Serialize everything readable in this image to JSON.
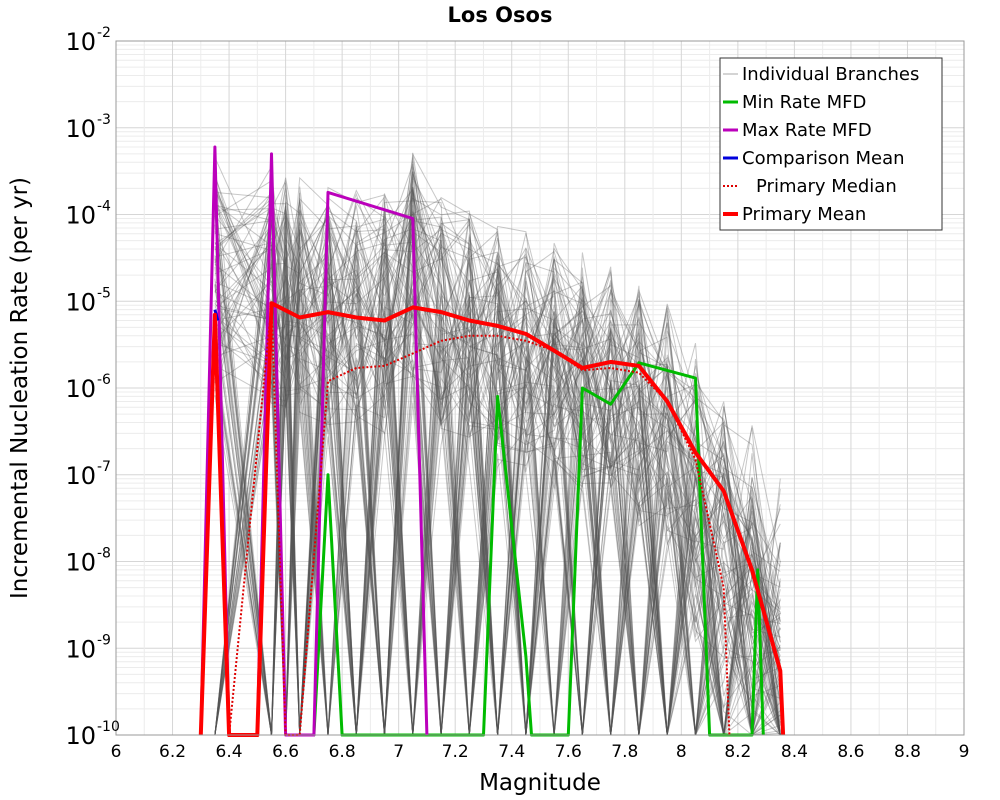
{
  "chart_data": {
    "type": "line",
    "title": "Los Osos",
    "xlabel": "Magnitude",
    "ylabel": "Incremental Nucleation Rate (per yr)",
    "xlim": [
      6,
      9
    ],
    "ylim": [
      1e-10,
      0.01
    ],
    "yscale": "log",
    "grid": true,
    "legend_position": "top-right",
    "x_ticks": [
      "6",
      "6.2",
      "6.4",
      "6.6",
      "6.8",
      "7",
      "7.2",
      "7.4",
      "7.6",
      "7.8",
      "8",
      "8.2",
      "8.4",
      "8.6",
      "8.8",
      "9"
    ],
    "y_ticks": [
      {
        "base": "10",
        "exp": "-10"
      },
      {
        "base": "10",
        "exp": "-9"
      },
      {
        "base": "10",
        "exp": "-8"
      },
      {
        "base": "10",
        "exp": "-7"
      },
      {
        "base": "10",
        "exp": "-6"
      },
      {
        "base": "10",
        "exp": "-5"
      },
      {
        "base": "10",
        "exp": "-4"
      },
      {
        "base": "10",
        "exp": "-3"
      },
      {
        "base": "10",
        "exp": "-2"
      }
    ],
    "series": [
      {
        "name": "Individual Branches",
        "color": "#555555",
        "style": "thin-gray-ensemble",
        "envelope_top": [
          [
            6.35,
            0.00055
          ],
          [
            6.55,
            0.00048
          ],
          [
            6.6,
            0.00035
          ],
          [
            6.65,
            0.00035
          ],
          [
            6.75,
            0.00026
          ],
          [
            6.85,
            0.00024
          ],
          [
            6.95,
            0.00023
          ],
          [
            7.05,
            0.0006
          ],
          [
            7.15,
            0.00016
          ],
          [
            7.25,
            0.00012
          ],
          [
            7.35,
            9e-05
          ],
          [
            7.45,
            7e-05
          ],
          [
            7.55,
            5.5e-05
          ],
          [
            7.65,
            3.8e-05
          ],
          [
            7.75,
            3e-05
          ],
          [
            7.85,
            2.2e-05
          ],
          [
            7.95,
            1.3e-05
          ],
          [
            8.05,
            1e-05
          ],
          [
            8.15,
            4e-06
          ],
          [
            8.2,
            2.5e-06
          ],
          [
            8.25,
            1e-06
          ],
          [
            8.35,
            2e-07
          ]
        ]
      },
      {
        "name": "Min Rate MFD",
        "color": "#00bb00",
        "points": [
          [
            6.65,
            1e-10
          ],
          [
            6.7,
            1e-10
          ],
          [
            6.75,
            1e-07
          ],
          [
            6.8,
            1e-10
          ],
          [
            7.3,
            1e-10
          ],
          [
            7.35,
            8e-07
          ],
          [
            7.45,
            8e-10
          ],
          [
            7.47,
            1e-10
          ],
          [
            7.6,
            1e-10
          ],
          [
            7.65,
            1e-06
          ],
          [
            7.75,
            6.5e-07
          ],
          [
            7.85,
            1.95e-06
          ],
          [
            8.05,
            1.3e-06
          ],
          [
            8.1,
            1e-10
          ],
          [
            8.25,
            1e-10
          ],
          [
            8.27,
            8e-09
          ],
          [
            8.29,
            1e-10
          ]
        ]
      },
      {
        "name": "Max Rate MFD",
        "color": "#bb00bb",
        "points": [
          [
            6.3,
            1e-10
          ],
          [
            6.35,
            0.0006
          ],
          [
            6.4,
            1e-10
          ],
          [
            6.5,
            1e-10
          ],
          [
            6.55,
            0.0005
          ],
          [
            6.6,
            1e-10
          ],
          [
            6.7,
            1e-10
          ],
          [
            6.75,
            0.00018
          ],
          [
            7.05,
            9e-05
          ],
          [
            7.1,
            1e-10
          ]
        ]
      },
      {
        "name": "Comparison Mean",
        "color": "#0000dd",
        "points": [
          [
            6.35,
            8e-06
          ],
          [
            6.36,
            6e-06
          ]
        ]
      },
      {
        "name": "Primary Median",
        "color": "#dd0000",
        "style": "dotted",
        "points": [
          [
            6.3,
            1e-10
          ],
          [
            6.35,
            5e-06
          ],
          [
            6.4,
            1e-10
          ],
          [
            6.55,
            9e-06
          ],
          [
            6.6,
            1e-10
          ],
          [
            6.65,
            1e-10
          ],
          [
            6.75,
            1.2e-06
          ],
          [
            6.85,
            1.7e-06
          ],
          [
            6.95,
            1.8e-06
          ],
          [
            7.05,
            2.5e-06
          ],
          [
            7.15,
            3.5e-06
          ],
          [
            7.25,
            4e-06
          ],
          [
            7.35,
            4e-06
          ],
          [
            7.45,
            3.5e-06
          ],
          [
            7.55,
            2.7e-06
          ],
          [
            7.65,
            1.6e-06
          ],
          [
            7.75,
            1.7e-06
          ],
          [
            7.85,
            1.5e-06
          ],
          [
            7.95,
            7e-07
          ],
          [
            8.05,
            1.5e-07
          ],
          [
            8.15,
            5e-09
          ],
          [
            8.17,
            1e-10
          ]
        ]
      },
      {
        "name": "Primary Mean",
        "color": "#ff0000",
        "points": [
          [
            6.3,
            1e-10
          ],
          [
            6.35,
            7e-06
          ],
          [
            6.4,
            1e-10
          ],
          [
            6.5,
            1e-10
          ],
          [
            6.55,
            9.5e-06
          ],
          [
            6.65,
            6.5e-06
          ],
          [
            6.75,
            7.5e-06
          ],
          [
            6.85,
            6.5e-06
          ],
          [
            6.95,
            6e-06
          ],
          [
            7.05,
            8.5e-06
          ],
          [
            7.15,
            7.5e-06
          ],
          [
            7.25,
            6e-06
          ],
          [
            7.35,
            5.2e-06
          ],
          [
            7.45,
            4.2e-06
          ],
          [
            7.55,
            2.7e-06
          ],
          [
            7.65,
            1.7e-06
          ],
          [
            7.75,
            2e-06
          ],
          [
            7.85,
            1.8e-06
          ],
          [
            7.95,
            7e-07
          ],
          [
            8.05,
            1.8e-07
          ],
          [
            8.15,
            6.5e-08
          ],
          [
            8.25,
            8e-09
          ],
          [
            8.35,
            5.5e-10
          ],
          [
            8.36,
            1e-10
          ]
        ]
      }
    ]
  }
}
